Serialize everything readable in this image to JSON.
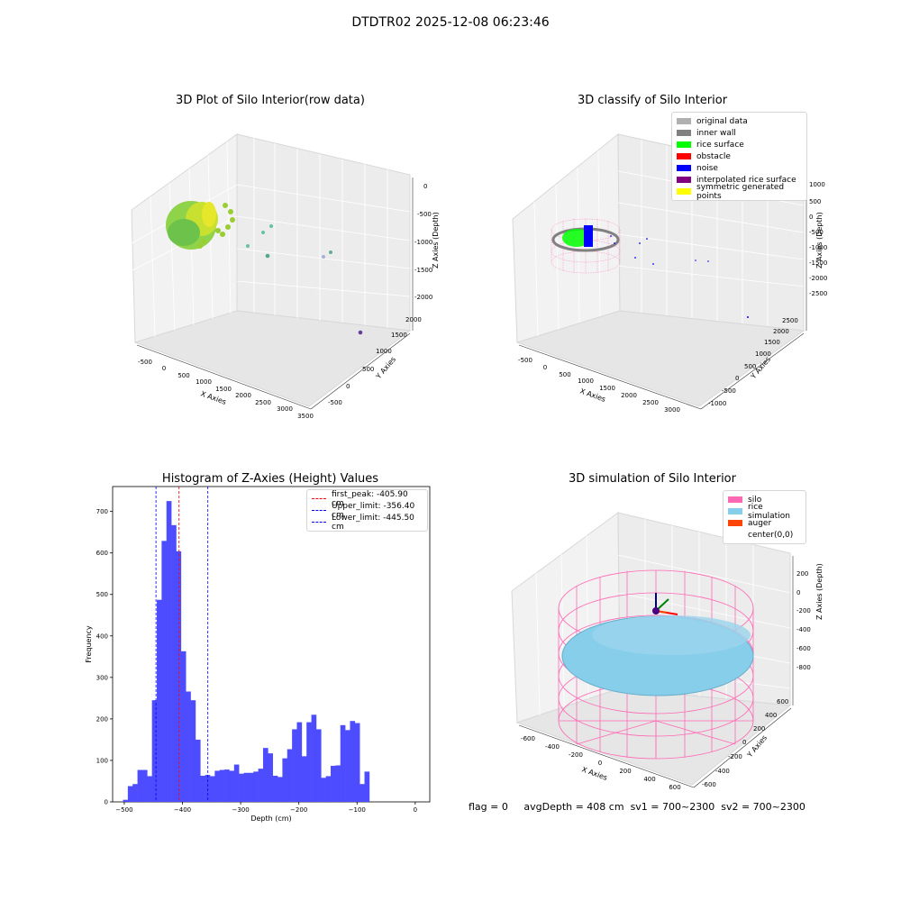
{
  "figure_title": "DTDTR02 2025-12-08 06:23:46",
  "footer": {
    "flag": "flag = 0",
    "avg_depth": "avgDepth = 408 cm",
    "sv1": "sv1 = 700~2300",
    "sv2": "sv2 = 700~2300"
  },
  "colors": {
    "original": "#b0b0b0",
    "inner_wall": "#808080",
    "rice_surface": "#00ff00",
    "obstacle": "#ff0000",
    "noise": "#0000ff",
    "interpolated": "#800080",
    "symmetric": "#ffff00",
    "silo": "#ff69b4",
    "rice_sim": "#87ceeb",
    "auger": "#ff4500",
    "hist_bar": "#4d4dff"
  },
  "chart_data": [
    {
      "type": "scatter",
      "title": "3D Plot of Silo Interior(row data)",
      "xlabel": "X Axies",
      "ylabel": "Y Axies",
      "zlabel": "Z Axies (Depth)",
      "x_ticks": [
        "-500",
        "0",
        "500",
        "1000",
        "1500",
        "2000",
        "2500",
        "3000",
        "3500"
      ],
      "y_ticks": [
        "-500",
        "0",
        "500",
        "1000",
        "1500",
        "2000"
      ],
      "z_ticks": [
        "0",
        "-500",
        "-1000",
        "-1500",
        "-2000"
      ]
    },
    {
      "type": "scatter",
      "title": "3D classify of Silo Interior",
      "xlabel": "X Axies",
      "ylabel": "Y Axies",
      "zlabel": "Z Axies (Depth)",
      "x_ticks": [
        "-500",
        "0",
        "500",
        "1000",
        "1500",
        "2000",
        "2500",
        "3000"
      ],
      "y_ticks": [
        "-1000",
        "-500",
        "0",
        "500",
        "1000",
        "1500",
        "2000",
        "2500"
      ],
      "z_ticks": [
        "1000",
        "500",
        "0",
        "-500",
        "-1000",
        "-1500",
        "-2000",
        "-2500"
      ],
      "legend": [
        "original data",
        "inner wall",
        "rice surface",
        "obstacle",
        "noise",
        "interpolated rice surface",
        "symmetric generated points"
      ]
    },
    {
      "type": "bar",
      "title": "Histogram of Z-Axies (Height) Values",
      "xlabel": "Depth (cm)",
      "ylabel": "Frequency",
      "xlim": [
        -520,
        25
      ],
      "ylim": [
        0,
        760
      ],
      "x_ticks": [
        -500,
        -400,
        -300,
        -200,
        -100,
        0
      ],
      "y_ticks": [
        0,
        100,
        200,
        300,
        400,
        500,
        600,
        700
      ],
      "bin_width": 8.3,
      "bin_start": -510.5,
      "values": [
        0,
        5,
        38,
        43,
        77,
        77,
        62,
        245,
        487,
        629,
        725,
        667,
        604,
        363,
        266,
        245,
        150,
        63,
        65,
        62,
        75,
        77,
        78,
        75,
        90,
        68,
        70,
        70,
        73,
        80,
        130,
        117,
        63,
        60,
        105,
        127,
        175,
        192,
        110,
        192,
        210,
        175,
        58,
        62,
        87,
        88,
        185,
        173,
        195,
        190,
        43,
        73
      ],
      "lines": [
        {
          "label": "first_peak: -405.90 cm",
          "x": -405.9,
          "color": "#ff0000"
        },
        {
          "label": "Upper_limit: -356.40 cm",
          "x": -356.4,
          "color": "#0000ff"
        },
        {
          "label": "Lower_limit: -445.50 cm",
          "x": -445.5,
          "color": "#0000ff"
        }
      ]
    },
    {
      "type": "scatter",
      "title": "3D simulation of Silo Interior",
      "xlabel": "X Axies",
      "ylabel": "Y Axies",
      "zlabel": "Z Axies (Depth)",
      "x_ticks": [
        "-600",
        "-400",
        "-200",
        "0",
        "200",
        "400",
        "600"
      ],
      "y_ticks": [
        "-600",
        "-400",
        "-200",
        "0",
        "200",
        "400",
        "600"
      ],
      "z_ticks": [
        "200",
        "0",
        "-200",
        "-400",
        "-600",
        "-800"
      ],
      "legend": [
        "silo",
        "rice simulation",
        "auger",
        "center(0,0)"
      ]
    }
  ]
}
